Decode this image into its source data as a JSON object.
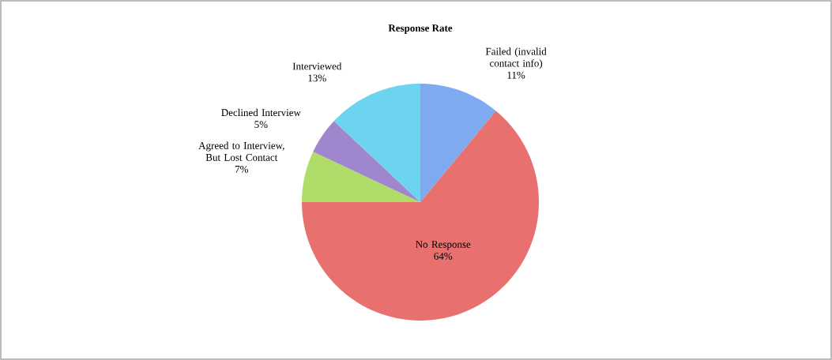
{
  "chart_data": {
    "type": "pie",
    "title": "Response Rate",
    "categories": [
      "Failed (invalid contact info)",
      "No Response",
      "Agreed to Interview, But Lost Contact",
      "Declined Interview",
      "Interviewed"
    ],
    "values": [
      11,
      64,
      7,
      5,
      13
    ],
    "colors": [
      "#7eaaf0",
      "#e8706e",
      "#b0dc6a",
      "#a086cc",
      "#6cd4ee"
    ],
    "value_labels": [
      "11%",
      "64%",
      "7%",
      "5%",
      "13%"
    ]
  }
}
